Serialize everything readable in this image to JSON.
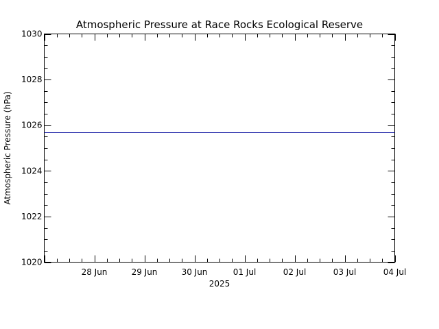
{
  "chart_data": {
    "type": "line",
    "title": "Atmospheric Pressure at Race Rocks Ecological Reserve",
    "xlabel": "2025",
    "ylabel": "Atmospheric Pressure (hPa)",
    "x_tick_labels": [
      "28 Jun",
      "29 Jun",
      "30 Jun",
      "01 Jul",
      "02 Jul",
      "03 Jul",
      "04 Jul"
    ],
    "x_ticks": [
      "2025-06-28",
      "2025-06-29",
      "2025-06-30",
      "2025-07-01",
      "2025-07-02",
      "2025-07-03",
      "2025-07-04"
    ],
    "xlim": [
      "2025-06-27T00:00",
      "2025-07-04T00:00"
    ],
    "y_tick_labels": [
      "1020",
      "1022",
      "1024",
      "1026",
      "1028",
      "1030"
    ],
    "y_ticks": [
      1020,
      1022,
      1024,
      1026,
      1028,
      1030
    ],
    "ylim": [
      1020,
      1030
    ],
    "y_minor_step": 0.5,
    "grid": false,
    "series": [
      {
        "color": "#1f24a8",
        "x": [
          "2025-06-27T00:00",
          "2025-07-04T00:00"
        ],
        "values": [
          1025.7,
          1025.7
        ]
      }
    ]
  }
}
